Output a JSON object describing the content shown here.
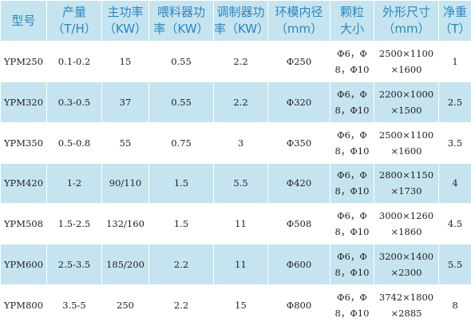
{
  "table": {
    "header": [
      [
        "型号"
      ],
      [
        "产量",
        "（T/H）"
      ],
      [
        "主功率",
        "（KW）"
      ],
      [
        "喂料器功",
        "率（KW）"
      ],
      [
        "调制器功",
        "率（KW）"
      ],
      [
        "环模内径",
        "（mm）"
      ],
      [
        "颗粒",
        "大小"
      ],
      [
        "外形尺寸",
        "（mm）"
      ],
      [
        "净重",
        "（T）"
      ]
    ],
    "rows": [
      [
        [
          "YPM250"
        ],
        [
          "0.1-0.2"
        ],
        [
          "15"
        ],
        [
          "0.55"
        ],
        [
          "2.2"
        ],
        [
          "Φ250"
        ],
        [
          "Φ6，Φ",
          "8，Φ10"
        ],
        [
          "2500×1100",
          "×1600"
        ],
        [
          "1"
        ]
      ],
      [
        [
          "YPM320"
        ],
        [
          "0.3-0.5"
        ],
        [
          "37"
        ],
        [
          "0.55"
        ],
        [
          "2.2"
        ],
        [
          "Φ320"
        ],
        [
          "Φ6，Φ",
          "8，Φ10"
        ],
        [
          "2200×1000",
          "×1500"
        ],
        [
          "2.5"
        ]
      ],
      [
        [
          "YPM350"
        ],
        [
          "0.5-0.8"
        ],
        [
          "55"
        ],
        [
          "0.75"
        ],
        [
          "3"
        ],
        [
          "Φ350"
        ],
        [
          "Φ6，Φ",
          "8，Φ10"
        ],
        [
          "2500×1100",
          "×1600"
        ],
        [
          "3.5"
        ]
      ],
      [
        [
          "YPM420"
        ],
        [
          "1-2"
        ],
        [
          "90/110"
        ],
        [
          "1.5"
        ],
        [
          "5.5"
        ],
        [
          "Φ420"
        ],
        [
          "Φ6，Φ",
          "8，Φ10"
        ],
        [
          "2800×1150",
          "×1730"
        ],
        [
          "4"
        ]
      ],
      [
        [
          "YPM508"
        ],
        [
          "1.5-2.5"
        ],
        [
          "132/160"
        ],
        [
          "1.5"
        ],
        [
          "11"
        ],
        [
          "Φ508"
        ],
        [
          "Φ6，Φ",
          "8，Φ10"
        ],
        [
          "3000×1260",
          "×1860"
        ],
        [
          "4.5"
        ]
      ],
      [
        [
          "YPM600"
        ],
        [
          "2.5-3.5"
        ],
        [
          "185/200"
        ],
        [
          "2.2"
        ],
        [
          "11"
        ],
        [
          "Φ600"
        ],
        [
          "Φ6，Φ",
          "8，Φ10"
        ],
        [
          "3200×1400",
          "×2300"
        ],
        [
          "5.5"
        ]
      ],
      [
        [
          "YPM800"
        ],
        [
          "3.5-5"
        ],
        [
          "250"
        ],
        [
          "2.2"
        ],
        [
          "15"
        ],
        [
          "Φ800"
        ],
        [
          "Φ6，Φ",
          "8，Φ10"
        ],
        [
          "3742×1800",
          "×2885"
        ],
        [
          "8"
        ]
      ]
    ]
  }
}
